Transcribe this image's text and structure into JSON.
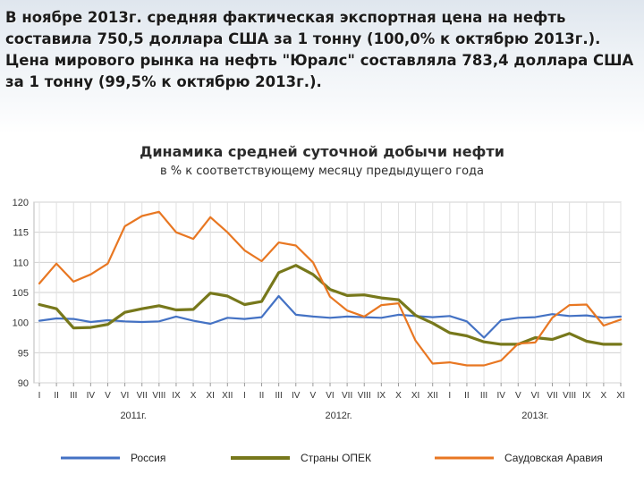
{
  "header": {
    "text": "В ноябре 2013г. средняя фактическая экспортная цена на нефть составила 750,5 доллара США за 1 тонну (100,0% к октябрю 2013г.). Цена мирового рынка на нефть \"Юралс\" составляла 783,4 доллара США за 1 тонну (99,5% к октябрю 2013г.)."
  },
  "chart_data": {
    "type": "line",
    "title": "Динамика средней суточной добычи нефти",
    "subtitle": "в % к соответствующему месяцу предыдущего года",
    "ylim": [
      90,
      120
    ],
    "yticks": [
      90,
      95,
      100,
      105,
      110,
      115,
      120
    ],
    "grid": true,
    "legend_position": "bottom",
    "categories": [
      "I",
      "II",
      "III",
      "IV",
      "V",
      "VI",
      "VII",
      "VIII",
      "IX",
      "X",
      "XI",
      "XII",
      "I",
      "II",
      "III",
      "IV",
      "V",
      "VI",
      "VII",
      "VIII",
      "IX",
      "X",
      "XI",
      "XII",
      "I",
      "II",
      "III",
      "IV",
      "V",
      "VI",
      "VII",
      "VIII",
      "IX",
      "X",
      "XI"
    ],
    "year_labels": [
      "2011г.",
      "2012г.",
      "2013г."
    ],
    "series": [
      {
        "name": "Россия",
        "color": "#4472c4",
        "values": [
          100.3,
          100.7,
          100.6,
          100.1,
          100.4,
          100.2,
          100.1,
          100.2,
          101.0,
          100.3,
          99.8,
          100.8,
          100.6,
          100.9,
          104.4,
          101.3,
          101.0,
          100.8,
          101.0,
          100.9,
          100.8,
          101.3,
          101.1,
          100.9,
          101.1,
          100.2,
          97.5,
          100.4,
          100.8,
          100.9,
          101.4,
          101.1,
          101.2,
          100.8,
          101.0
        ]
      },
      {
        "name": "Страны ОПЕК",
        "color": "#77781b",
        "values": [
          103.0,
          102.3,
          99.1,
          99.2,
          99.7,
          101.7,
          102.3,
          102.8,
          102.1,
          102.2,
          104.9,
          104.4,
          103.0,
          103.5,
          108.3,
          109.5,
          108.0,
          105.5,
          104.5,
          104.6,
          104.1,
          103.8,
          101.2,
          99.9,
          98.3,
          97.8,
          96.8,
          96.4,
          96.4,
          97.5,
          97.2,
          98.2,
          96.9,
          96.4,
          96.4
        ]
      },
      {
        "name": "Саудовская Аравия",
        "color": "#e87722",
        "values": [
          106.5,
          109.8,
          106.8,
          108.0,
          109.8,
          116.0,
          117.7,
          118.4,
          115.0,
          113.9,
          117.5,
          115.0,
          112.0,
          110.2,
          113.3,
          112.8,
          110.0,
          104.3,
          102.0,
          101.0,
          102.9,
          103.2,
          97.0,
          93.2,
          93.4,
          92.9,
          92.9,
          93.7,
          96.5,
          96.7,
          100.8,
          102.9,
          103.0,
          99.5,
          100.5
        ]
      }
    ]
  }
}
